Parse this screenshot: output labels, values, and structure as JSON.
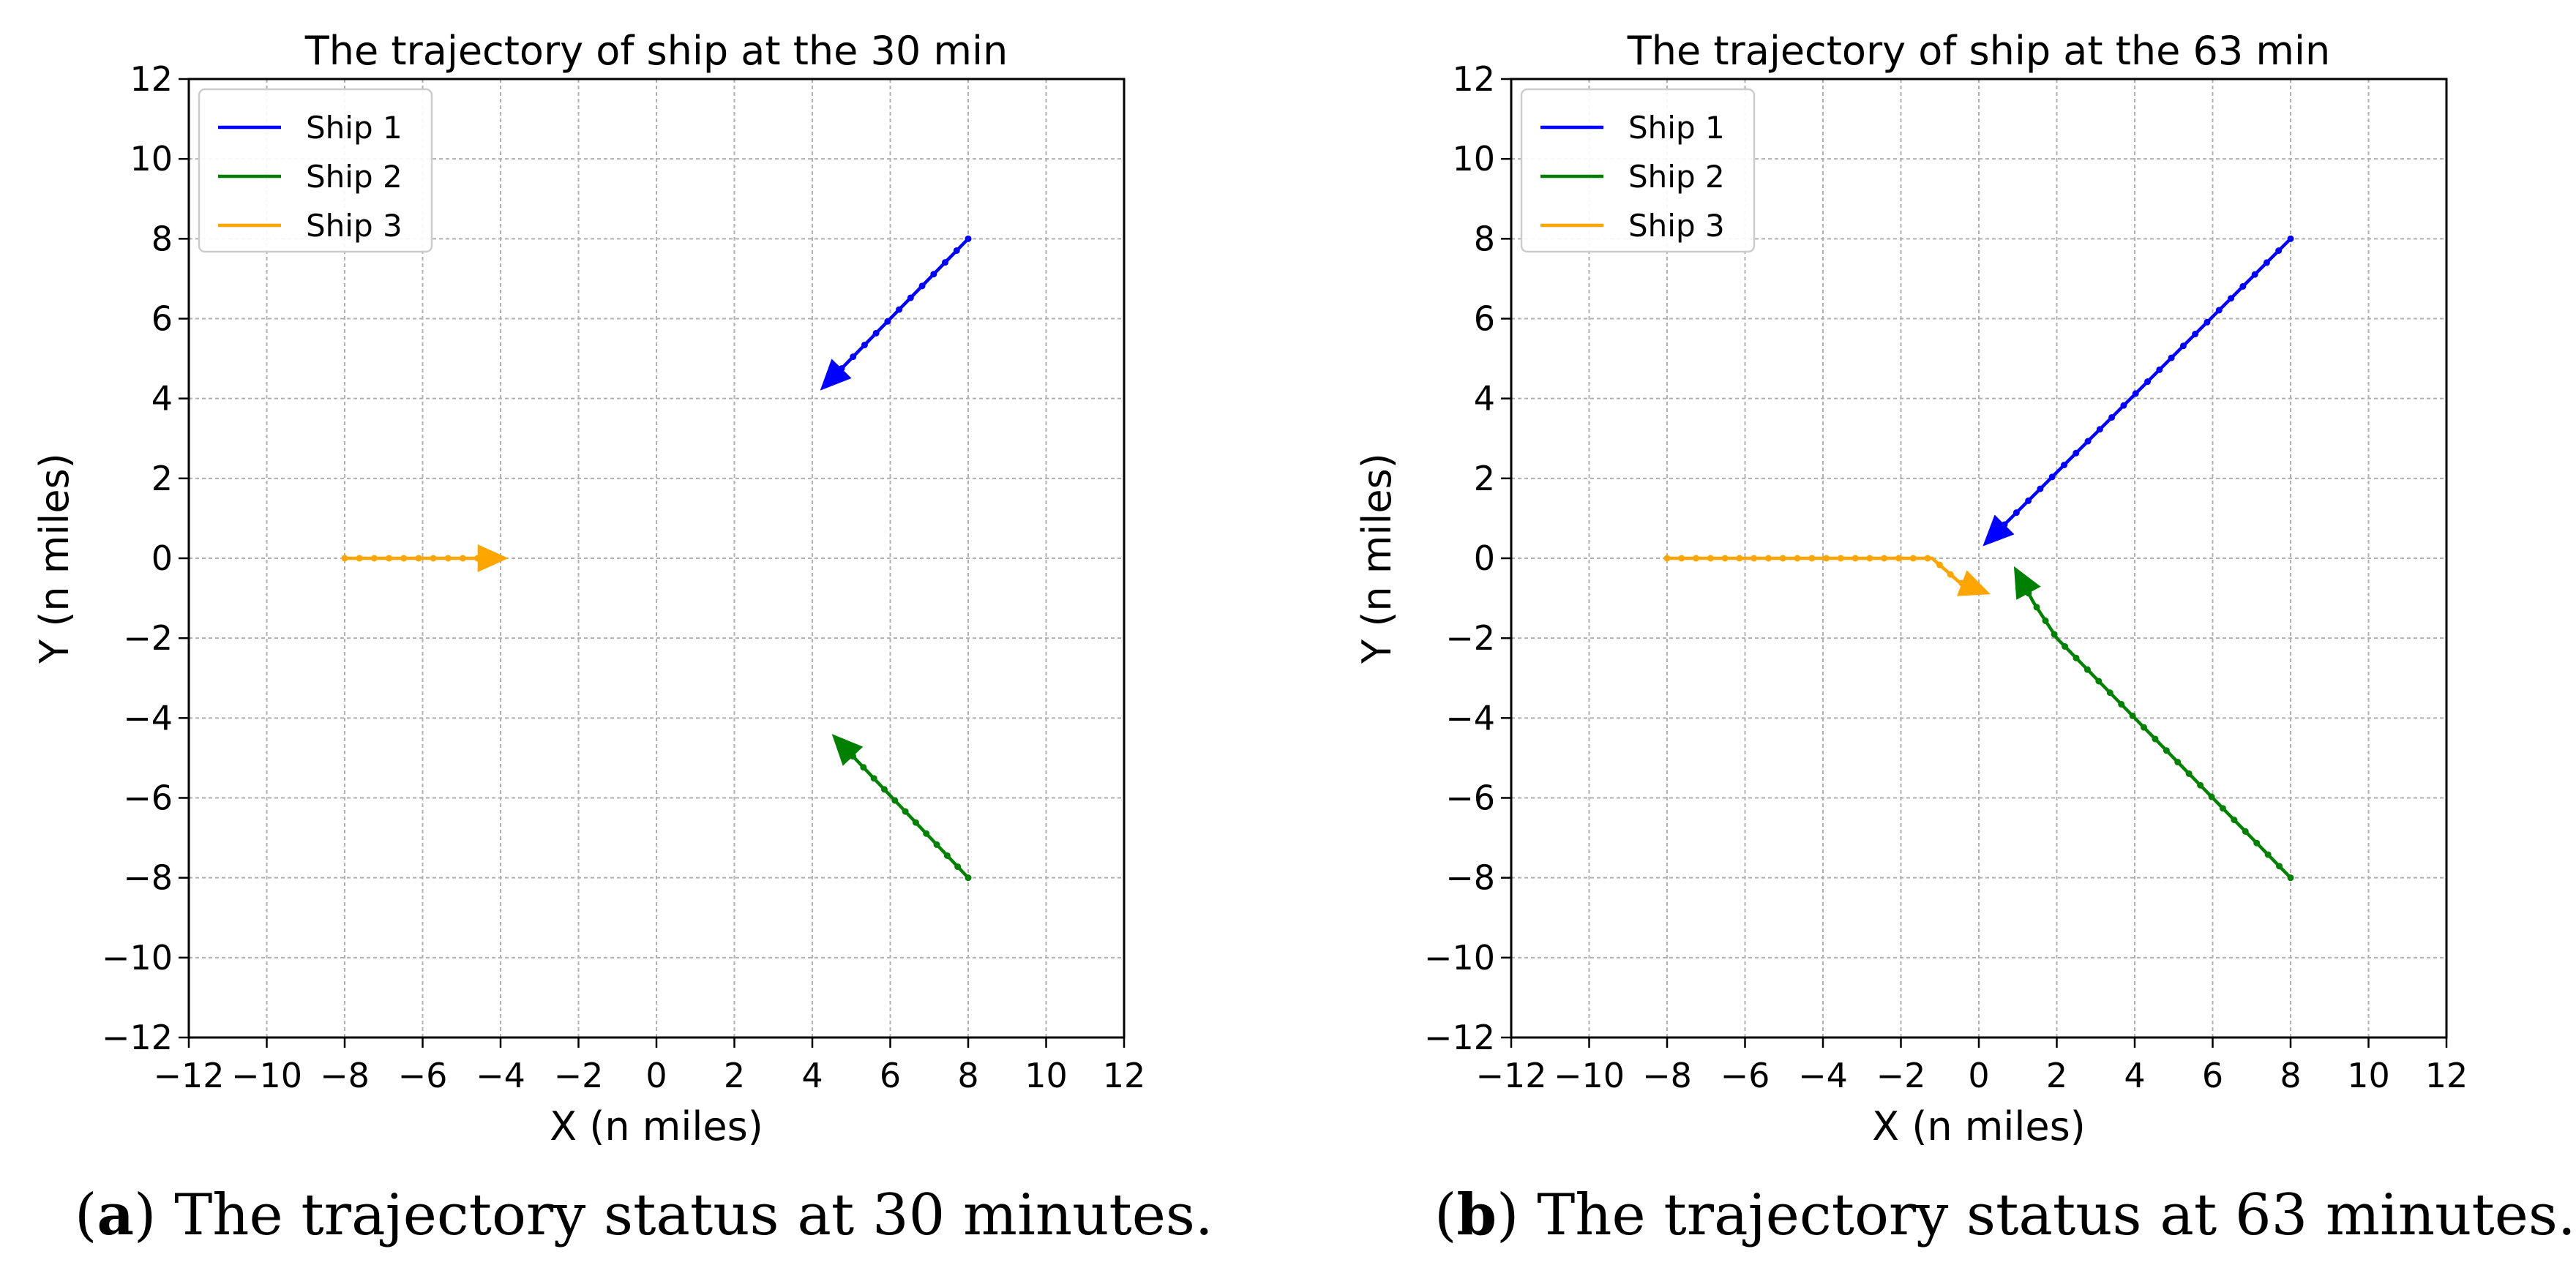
{
  "chart_data": [
    {
      "type": "line",
      "panel_letter": "a",
      "caption": "The trajectory status at 30 minutes.",
      "title": "The trajectory of ship at the 30 min",
      "xlabel": "X (n miles)",
      "ylabel": "Y (n miles)",
      "xlim": [
        -12,
        12
      ],
      "ylim": [
        -12,
        12
      ],
      "xticks": [
        "−12",
        "−10",
        "−8",
        "−6",
        "−4",
        "−2",
        "0",
        "2",
        "4",
        "6",
        "8",
        "10",
        "12"
      ],
      "yticks": [
        "12",
        "10",
        "8",
        "6",
        "4",
        "2",
        "0",
        "−2",
        "−4",
        "−6",
        "−8",
        "−10",
        "−12"
      ],
      "grid": true,
      "legend_position": "top-left",
      "series": [
        {
          "name": "Ship 1",
          "color": "#0000ff",
          "x": [
            8,
            4.2
          ],
          "y": [
            8,
            4.2
          ],
          "markers": 12,
          "arrow": true
        },
        {
          "name": "Ship 2",
          "color": "#008000",
          "x": [
            8,
            4.5
          ],
          "y": [
            -8,
            -4.4
          ],
          "markers": 12,
          "arrow": true
        },
        {
          "name": "Ship 3",
          "color": "#ffa500",
          "x": [
            -8,
            -3.8
          ],
          "y": [
            0,
            0
          ],
          "markers": 10,
          "arrow": true
        }
      ]
    },
    {
      "type": "line",
      "panel_letter": "b",
      "caption": "The trajectory status at 63 minutes.",
      "title": "The trajectory of ship at the 63 min",
      "xlabel": "X (n miles)",
      "ylabel": "Y (n miles)",
      "xlim": [
        -12,
        12
      ],
      "ylim": [
        -12,
        12
      ],
      "xticks": [
        "−12",
        "−10",
        "−8",
        "−6",
        "−4",
        "−2",
        "0",
        "2",
        "4",
        "6",
        "8",
        "10",
        "12"
      ],
      "yticks": [
        "12",
        "10",
        "8",
        "6",
        "4",
        "2",
        "0",
        "−2",
        "−4",
        "−6",
        "−8",
        "−10",
        "−12"
      ],
      "grid": true,
      "legend_position": "top-left",
      "series": [
        {
          "name": "Ship 1",
          "color": "#0000ff",
          "x": [
            8,
            0.1
          ],
          "y": [
            8,
            0.3
          ],
          "markers": 25,
          "arrow": true
        },
        {
          "name": "Ship 2",
          "color": "#008000",
          "x": [
            8,
            2,
            1.4,
            0.9
          ],
          "y": [
            -8,
            -2,
            -1.1,
            -0.2
          ],
          "markers": 25,
          "arrow": true
        },
        {
          "name": "Ship 3",
          "color": "#ffa500",
          "x": [
            -8,
            -1.2,
            -0.5,
            0.3
          ],
          "y": [
            0,
            0,
            -0.6,
            -0.9
          ],
          "markers": 22,
          "arrow": true
        }
      ]
    }
  ]
}
